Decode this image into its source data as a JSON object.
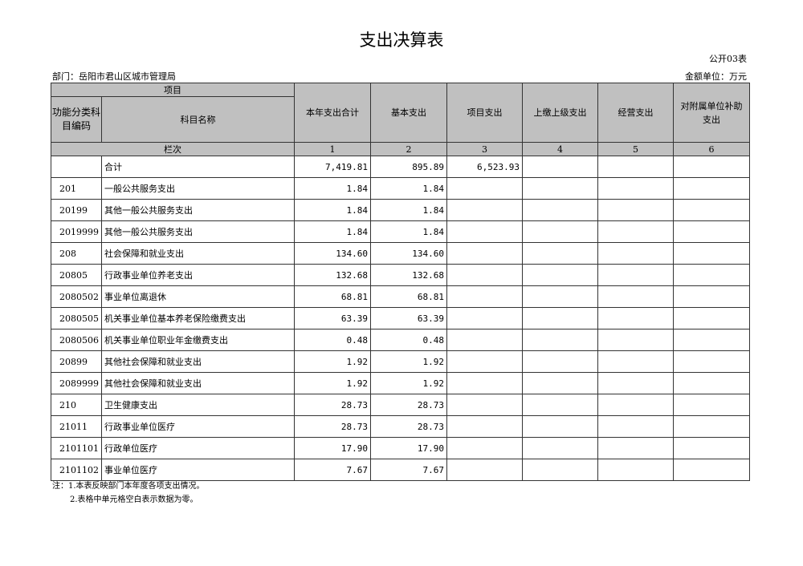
{
  "title": "支出决算表",
  "form_no": "公开03表",
  "department": "部门：岳阳市君山区城市管理局",
  "unit": "金额单位：万元",
  "header": {
    "project": "项目",
    "code": "功能分类科目编码",
    "name": "科目名称",
    "cols": [
      "本年支出合计",
      "基本支出",
      "项目支出",
      "上缴上级支出",
      "经营支出",
      "对附属单位补助支出"
    ],
    "row_label": "栏次",
    "col_numbers": [
      "1",
      "2",
      "3",
      "4",
      "5",
      "6"
    ]
  },
  "rows": [
    {
      "code": "",
      "name": "合计",
      "v": [
        "7,419.81",
        "895.89",
        "6,523.93",
        "",
        "",
        ""
      ]
    },
    {
      "code": "201",
      "name": "一般公共服务支出",
      "v": [
        "1.84",
        "1.84",
        "",
        "",
        "",
        ""
      ]
    },
    {
      "code": "20199",
      "name": "其他一般公共服务支出",
      "v": [
        "1.84",
        "1.84",
        "",
        "",
        "",
        ""
      ]
    },
    {
      "code": "2019999",
      "name": "其他一般公共服务支出",
      "v": [
        "1.84",
        "1.84",
        "",
        "",
        "",
        ""
      ]
    },
    {
      "code": "208",
      "name": "社会保障和就业支出",
      "v": [
        "134.60",
        "134.60",
        "",
        "",
        "",
        ""
      ]
    },
    {
      "code": "20805",
      "name": "行政事业单位养老支出",
      "v": [
        "132.68",
        "132.68",
        "",
        "",
        "",
        ""
      ]
    },
    {
      "code": "2080502",
      "name": "事业单位离退休",
      "v": [
        "68.81",
        "68.81",
        "",
        "",
        "",
        ""
      ]
    },
    {
      "code": "2080505",
      "name": "机关事业单位基本养老保险缴费支出",
      "v": [
        "63.39",
        "63.39",
        "",
        "",
        "",
        ""
      ]
    },
    {
      "code": "2080506",
      "name": "机关事业单位职业年金缴费支出",
      "v": [
        "0.48",
        "0.48",
        "",
        "",
        "",
        ""
      ]
    },
    {
      "code": "20899",
      "name": "其他社会保障和就业支出",
      "v": [
        "1.92",
        "1.92",
        "",
        "",
        "",
        ""
      ]
    },
    {
      "code": "2089999",
      "name": "其他社会保障和就业支出",
      "v": [
        "1.92",
        "1.92",
        "",
        "",
        "",
        ""
      ]
    },
    {
      "code": "210",
      "name": "卫生健康支出",
      "v": [
        "28.73",
        "28.73",
        "",
        "",
        "",
        ""
      ]
    },
    {
      "code": "21011",
      "name": "行政事业单位医疗",
      "v": [
        "28.73",
        "28.73",
        "",
        "",
        "",
        ""
      ]
    },
    {
      "code": "2101101",
      "name": "行政单位医疗",
      "v": [
        "17.90",
        "17.90",
        "",
        "",
        "",
        ""
      ]
    },
    {
      "code": "2101102",
      "name": "事业单位医疗",
      "v": [
        "7.67",
        "7.67",
        "",
        "",
        "",
        ""
      ]
    }
  ],
  "notes": [
    "注：1.本表反映部门本年度各项支出情况。",
    "2.表格中单元格空白表示数据为零。"
  ]
}
